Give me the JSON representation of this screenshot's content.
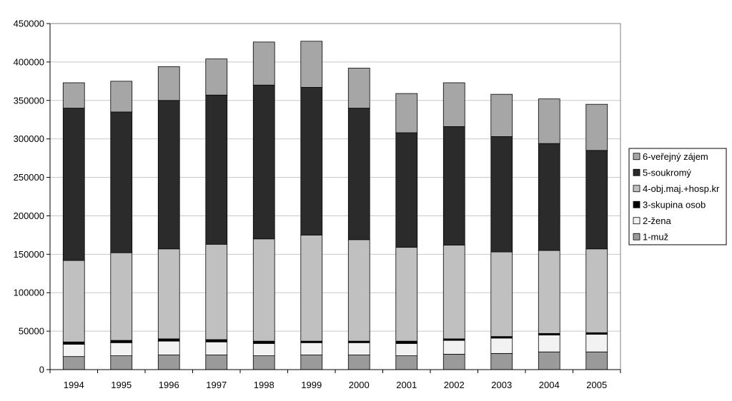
{
  "chart_data": {
    "type": "bar",
    "stacked": true,
    "categories": [
      "1994",
      "1995",
      "1996",
      "1997",
      "1998",
      "1999",
      "2000",
      "2001",
      "2002",
      "2003",
      "2004",
      "2005"
    ],
    "ylim": [
      0,
      450000
    ],
    "yticks": [
      "0",
      "50000",
      "100000",
      "150000",
      "200000",
      "250000",
      "300000",
      "350000",
      "400000",
      "450000"
    ],
    "ytick_values": [
      0,
      50000,
      100000,
      150000,
      200000,
      250000,
      300000,
      350000,
      400000,
      450000
    ],
    "grid": true,
    "legend_position": "right",
    "series": [
      {
        "name": "1-muž",
        "color": "#9a9a9a",
        "values": [
          17000,
          18000,
          19000,
          19000,
          18000,
          19000,
          19000,
          18000,
          20000,
          21000,
          23000,
          23000
        ]
      },
      {
        "name": "2-žena",
        "color": "#f2f2f2",
        "values": [
          16000,
          17000,
          18000,
          17000,
          16000,
          16000,
          16000,
          16000,
          18000,
          20000,
          22000,
          23000
        ]
      },
      {
        "name": "3-skupina osob",
        "color": "#000000",
        "values": [
          3000,
          3000,
          3000,
          3000,
          3000,
          2000,
          2000,
          3000,
          2000,
          2000,
          2000,
          2000
        ]
      },
      {
        "name": "4-obj.maj.+hosp.kr",
        "color": "#c0c0c0",
        "values": [
          106000,
          114000,
          117000,
          124000,
          133000,
          138000,
          132000,
          122000,
          122000,
          110000,
          108000,
          109000
        ]
      },
      {
        "name": "5-soukromý",
        "color": "#2b2b2b",
        "values": [
          198000,
          183000,
          193000,
          194000,
          200000,
          192000,
          171000,
          149000,
          154000,
          150000,
          139000,
          128000
        ]
      },
      {
        "name": "6-veřejný zájem",
        "color": "#a6a6a6",
        "values": [
          33000,
          40000,
          44000,
          47000,
          56000,
          60000,
          52000,
          51000,
          57000,
          55000,
          58000,
          60000
        ]
      }
    ],
    "legend_order": [
      "6-veřejný zájem",
      "5-soukromý",
      "4-obj.maj.+hosp.kr",
      "3-skupina osob",
      "2-žena",
      "1-muž"
    ]
  }
}
